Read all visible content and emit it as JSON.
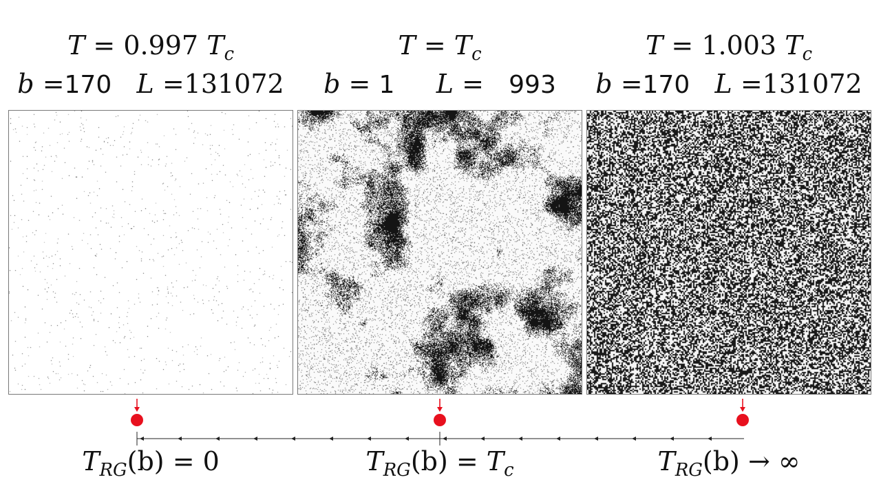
{
  "panels": [
    {
      "temperature": {
        "sym": "T",
        "eq": " = ",
        "value": "0.997",
        "tc": "T",
        "tc_sub": "c"
      },
      "params": {
        "b_sym": "b",
        "b_eq": " =",
        "b_val": "170",
        "L_sym": "L",
        "L_eq": " =",
        "L_val": "131072"
      },
      "phase": "ordered"
    },
    {
      "temperature": {
        "sym": "T",
        "eq": " = ",
        "tc": "T",
        "tc_sub": "c"
      },
      "params": {
        "b_sym": "b",
        "b_eq": " = ",
        "b_val": "1",
        "L_sym": "L",
        "L_eq": " = ",
        "L_val": "993"
      },
      "phase": "critical"
    },
    {
      "temperature": {
        "sym": "T",
        "eq": " = ",
        "value": "1.003",
        "tc": "T",
        "tc_sub": "c"
      },
      "params": {
        "b_sym": "b",
        "b_eq": " =",
        "b_val": "170",
        "L_sym": "L",
        "L_eq": " =",
        "L_val": "131072"
      },
      "phase": "disordered"
    }
  ],
  "flow_labels": [
    {
      "sym": "T",
      "sub": "RG",
      "arg": "(b)",
      "rel": " = ",
      "rhs": "0"
    },
    {
      "sym": "T",
      "sub": "RG",
      "arg": "(b)",
      "rel": " = ",
      "rhs_sym": "T",
      "rhs_sub": "c"
    },
    {
      "sym": "T",
      "sub": "RG",
      "arg": "(b)",
      "rel": " → ",
      "rhs": "∞"
    }
  ],
  "colors": {
    "marker": "#e8101e",
    "axis": "#222222",
    "spin_up": "#ffffff",
    "spin_down": "#111111"
  },
  "axis": {
    "arrow_direction": "left",
    "marker_count": 3
  }
}
